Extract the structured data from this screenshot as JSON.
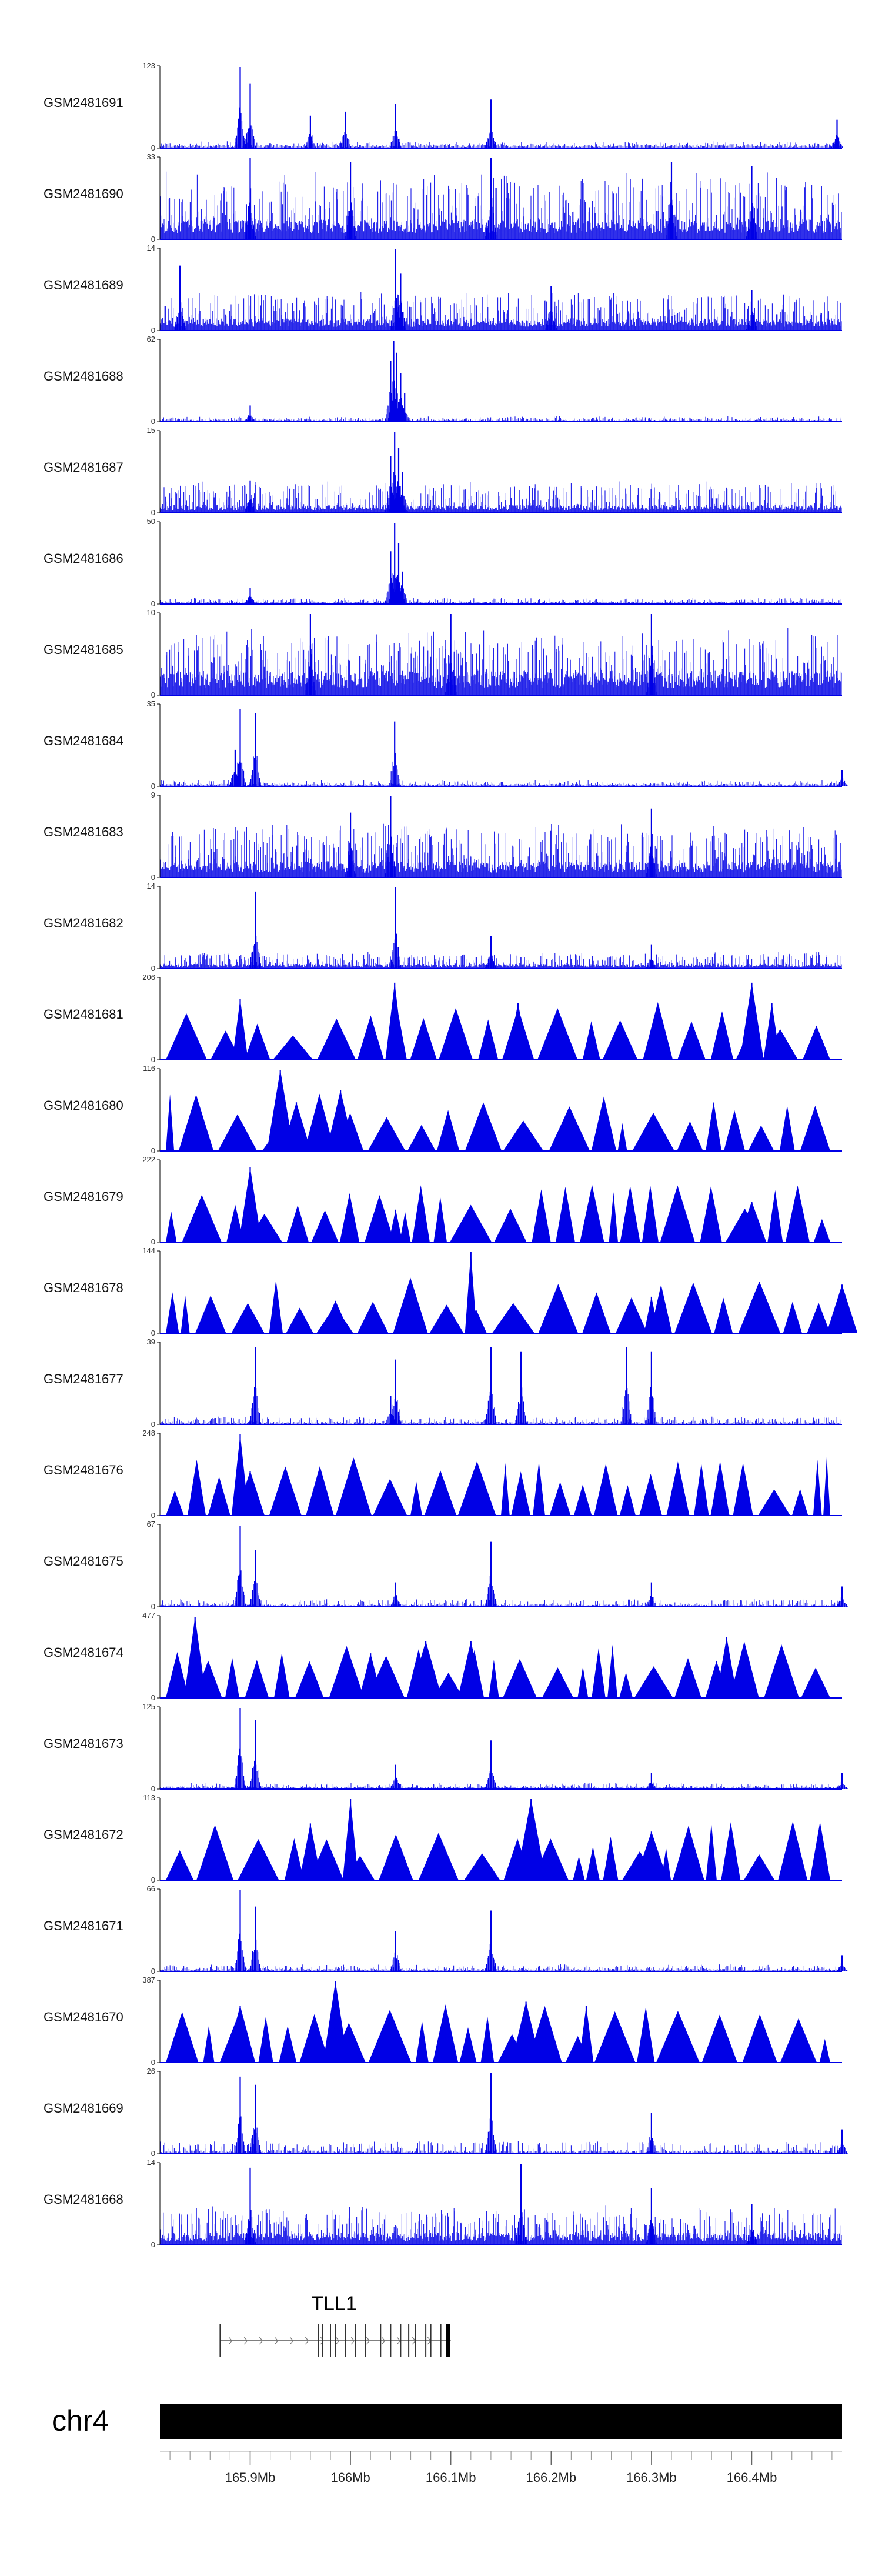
{
  "chart_data": {
    "type": "area",
    "title": "",
    "series_color": "#0000e6",
    "x_range_mb": [
      165.81,
      166.49
    ],
    "tracks": [
      {
        "name": "GSM2481691",
        "ymax": 123,
        "style": "spikes",
        "baseline": 0.04,
        "noise": 0.05,
        "peaks": [
          [
            165.89,
            1.0
          ],
          [
            165.9,
            0.8
          ],
          [
            165.96,
            0.4
          ],
          [
            165.995,
            0.45
          ],
          [
            166.045,
            0.55
          ],
          [
            166.14,
            0.6
          ],
          [
            166.485,
            0.35
          ]
        ]
      },
      {
        "name": "GSM2481690",
        "ymax": 33,
        "style": "dense",
        "baseline": 0.25,
        "noise": 0.6,
        "peaks": [
          [
            165.9,
            1.0
          ],
          [
            166.0,
            0.95
          ],
          [
            166.14,
            1.0
          ],
          [
            166.32,
            0.95
          ],
          [
            166.4,
            0.9
          ]
        ]
      },
      {
        "name": "GSM2481689",
        "ymax": 14,
        "style": "dense",
        "baseline": 0.15,
        "noise": 0.35,
        "peaks": [
          [
            165.83,
            0.8
          ],
          [
            166.045,
            1.0
          ],
          [
            166.05,
            0.7
          ],
          [
            166.2,
            0.55
          ],
          [
            166.4,
            0.5
          ]
        ]
      },
      {
        "name": "GSM2481688",
        "ymax": 62,
        "style": "spikes",
        "baseline": 0.03,
        "noise": 0.04,
        "peaks": [
          [
            165.9,
            0.2
          ],
          [
            166.04,
            0.75
          ],
          [
            166.043,
            1.0
          ],
          [
            166.046,
            0.85
          ],
          [
            166.05,
            0.6
          ],
          [
            166.054,
            0.35
          ]
        ]
      },
      {
        "name": "GSM2481687",
        "ymax": 15,
        "style": "dense",
        "baseline": 0.1,
        "noise": 0.3,
        "peaks": [
          [
            166.04,
            0.7
          ],
          [
            166.044,
            1.0
          ],
          [
            166.048,
            0.8
          ],
          [
            166.052,
            0.5
          ],
          [
            165.9,
            0.4
          ]
        ]
      },
      {
        "name": "GSM2481686",
        "ymax": 50,
        "style": "spikes",
        "baseline": 0.03,
        "noise": 0.05,
        "peaks": [
          [
            166.04,
            0.65
          ],
          [
            166.044,
            1.0
          ],
          [
            166.048,
            0.75
          ],
          [
            166.052,
            0.4
          ],
          [
            165.9,
            0.2
          ]
        ]
      },
      {
        "name": "GSM2481685",
        "ymax": 10,
        "style": "dense",
        "baseline": 0.3,
        "noise": 0.55,
        "peaks": [
          [
            165.96,
            1.0
          ],
          [
            166.1,
            1.0
          ],
          [
            166.3,
            1.0
          ]
        ]
      },
      {
        "name": "GSM2481684",
        "ymax": 35,
        "style": "spikes",
        "baseline": 0.03,
        "noise": 0.05,
        "peaks": [
          [
            165.89,
            0.95
          ],
          [
            165.905,
            0.9
          ],
          [
            165.885,
            0.45
          ],
          [
            166.044,
            0.8
          ],
          [
            166.49,
            0.2
          ]
        ]
      },
      {
        "name": "GSM2481683",
        "ymax": 9,
        "style": "dense",
        "baseline": 0.2,
        "noise": 0.5,
        "peaks": [
          [
            166.04,
            1.0
          ],
          [
            166.0,
            0.8
          ],
          [
            166.3,
            0.85
          ]
        ]
      },
      {
        "name": "GSM2481682",
        "ymax": 14,
        "style": "dense",
        "baseline": 0.06,
        "noise": 0.15,
        "peaks": [
          [
            165.905,
            0.95
          ],
          [
            166.045,
            1.0
          ],
          [
            166.14,
            0.4
          ],
          [
            166.3,
            0.3
          ]
        ]
      },
      {
        "name": "GSM2481681",
        "ymax": 206,
        "style": "triangles",
        "baseline": 0.0,
        "noise": 0.0,
        "peaks": [
          [
            165.89,
            0.75
          ],
          [
            166.044,
            0.95
          ],
          [
            166.167,
            0.7
          ],
          [
            166.4,
            0.95
          ],
          [
            166.42,
            0.7
          ]
        ]
      },
      {
        "name": "GSM2481680",
        "ymax": 116,
        "style": "triangles",
        "baseline": 0.0,
        "noise": 0.0,
        "peaks": [
          [
            165.93,
            1.0
          ],
          [
            165.99,
            0.75
          ],
          [
            165.946,
            0.6
          ]
        ]
      },
      {
        "name": "GSM2481679",
        "ymax": 222,
        "style": "triangles",
        "baseline": 0.0,
        "noise": 0.0,
        "peaks": [
          [
            165.9,
            0.92
          ],
          [
            166.045,
            0.4
          ],
          [
            166.4,
            0.5
          ]
        ]
      },
      {
        "name": "GSM2481678",
        "ymax": 144,
        "style": "triangles",
        "baseline": 0.0,
        "noise": 0.0,
        "peaks": [
          [
            166.12,
            1.0
          ],
          [
            165.985,
            0.4
          ],
          [
            166.3,
            0.45
          ],
          [
            166.49,
            0.6
          ]
        ]
      },
      {
        "name": "GSM2481677",
        "ymax": 39,
        "style": "spikes",
        "baseline": 0.03,
        "noise": 0.07,
        "peaks": [
          [
            165.905,
            0.95
          ],
          [
            166.045,
            0.8
          ],
          [
            166.04,
            0.35
          ],
          [
            166.14,
            0.95
          ],
          [
            166.17,
            0.9
          ],
          [
            166.275,
            0.95
          ],
          [
            166.3,
            0.9
          ]
        ]
      },
      {
        "name": "GSM2481676",
        "ymax": 248,
        "style": "triangles",
        "baseline": 0.0,
        "noise": 0.0,
        "peaks": [
          [
            165.89,
            1.0
          ],
          [
            165.9,
            0.55
          ]
        ]
      },
      {
        "name": "GSM2481675",
        "ymax": 67,
        "style": "spikes",
        "baseline": 0.03,
        "noise": 0.07,
        "peaks": [
          [
            165.89,
            1.0
          ],
          [
            165.905,
            0.7
          ],
          [
            166.045,
            0.3
          ],
          [
            166.14,
            0.8
          ],
          [
            166.3,
            0.3
          ],
          [
            166.49,
            0.25
          ]
        ]
      },
      {
        "name": "GSM2481674",
        "ymax": 477,
        "style": "triangles",
        "baseline": 0.0,
        "noise": 0.0,
        "peaks": [
          [
            165.845,
            1.0
          ],
          [
            166.02,
            0.55
          ],
          [
            166.075,
            0.7
          ],
          [
            166.12,
            0.7
          ],
          [
            166.375,
            0.75
          ]
        ]
      },
      {
        "name": "GSM2481673",
        "ymax": 125,
        "style": "spikes",
        "baseline": 0.03,
        "noise": 0.05,
        "peaks": [
          [
            165.89,
            1.0
          ],
          [
            165.905,
            0.85
          ],
          [
            166.045,
            0.3
          ],
          [
            166.14,
            0.6
          ],
          [
            166.3,
            0.2
          ],
          [
            166.49,
            0.2
          ]
        ]
      },
      {
        "name": "GSM2481672",
        "ymax": 113,
        "style": "triangles",
        "baseline": 0.0,
        "noise": 0.0,
        "peaks": [
          [
            166.0,
            1.0
          ],
          [
            166.18,
            1.0
          ],
          [
            165.96,
            0.7
          ],
          [
            166.3,
            0.6
          ]
        ]
      },
      {
        "name": "GSM2481671",
        "ymax": 66,
        "style": "spikes",
        "baseline": 0.03,
        "noise": 0.06,
        "peaks": [
          [
            165.89,
            1.0
          ],
          [
            165.905,
            0.8
          ],
          [
            166.045,
            0.5
          ],
          [
            166.14,
            0.75
          ],
          [
            166.49,
            0.2
          ]
        ]
      },
      {
        "name": "GSM2481670",
        "ymax": 387,
        "style": "triangles",
        "baseline": 0.0,
        "noise": 0.0,
        "peaks": [
          [
            165.985,
            1.0
          ],
          [
            165.89,
            0.7
          ],
          [
            166.175,
            0.75
          ],
          [
            166.235,
            0.7
          ]
        ]
      },
      {
        "name": "GSM2481669",
        "ymax": 26,
        "style": "spikes",
        "baseline": 0.04,
        "noise": 0.12,
        "peaks": [
          [
            165.89,
            0.95
          ],
          [
            165.905,
            0.85
          ],
          [
            166.14,
            1.0
          ],
          [
            166.3,
            0.5
          ],
          [
            166.49,
            0.3
          ]
        ]
      },
      {
        "name": "GSM2481668",
        "ymax": 14,
        "style": "dense",
        "baseline": 0.15,
        "noise": 0.35,
        "peaks": [
          [
            165.9,
            0.95
          ],
          [
            166.17,
            1.0
          ],
          [
            166.3,
            0.7
          ],
          [
            166.4,
            0.5
          ]
        ]
      }
    ],
    "y_tick_min": "0",
    "gene": {
      "name": "TLL1",
      "start_mb": 165.87,
      "end_mb": 166.1,
      "exons_mb": [
        165.87,
        165.968,
        165.972,
        165.98,
        165.985,
        165.995,
        166.005,
        166.015,
        166.03,
        166.04,
        166.05,
        166.058,
        166.065,
        166.075,
        166.08,
        166.09,
        166.097
      ]
    },
    "chromosome": "chr4",
    "axis_ticks_mb": [
      165.9,
      166.0,
      166.1,
      166.2,
      166.3,
      166.4
    ],
    "axis_tick_labels": [
      "165.9Mb",
      "166Mb",
      "166.1Mb",
      "166.2Mb",
      "166.3Mb",
      "166.4Mb"
    ]
  }
}
